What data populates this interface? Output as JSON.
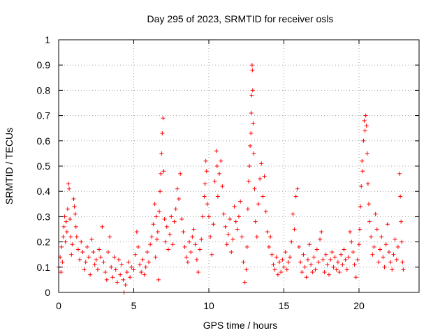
{
  "chart_data": {
    "type": "scatter",
    "title": "Day 295 of 2023, SRMTID for receiver osls",
    "xlabel": "GPS time / hours",
    "ylabel": "SRMTID / TECUs",
    "xlim": [
      0,
      24
    ],
    "ylim": [
      0,
      1
    ],
    "xticks": [
      0,
      5,
      10,
      15,
      20
    ],
    "xtick_labels": [
      "0",
      "5",
      "10",
      "15",
      "20"
    ],
    "yticks": [
      0,
      0.1,
      0.2,
      0.3,
      0.4,
      0.5,
      0.6,
      0.7,
      0.8,
      0.9,
      1
    ],
    "ytick_labels": [
      "0",
      "0.1",
      "0.2",
      "0.3",
      "0.4",
      "0.5",
      "0.6",
      "0.7",
      "0.8",
      "0.9",
      "1"
    ],
    "grid": true,
    "marker": "plus",
    "color": "#ff0000",
    "series": [
      {
        "name": "SRMTID",
        "points": [
          [
            0.0,
            0.1
          ],
          [
            0.1,
            0.14
          ],
          [
            0.15,
            0.08
          ],
          [
            0.2,
            0.18
          ],
          [
            0.25,
            0.12
          ],
          [
            0.3,
            0.22
          ],
          [
            0.35,
            0.26
          ],
          [
            0.4,
            0.3
          ],
          [
            0.45,
            0.2
          ],
          [
            0.5,
            0.28
          ],
          [
            0.55,
            0.24
          ],
          [
            0.6,
            0.33
          ],
          [
            0.65,
            0.43
          ],
          [
            0.7,
            0.41
          ],
          [
            0.75,
            0.29
          ],
          [
            0.8,
            0.22
          ],
          [
            0.85,
            0.15
          ],
          [
            0.9,
            0.19
          ],
          [
            1.0,
            0.37
          ],
          [
            1.05,
            0.34
          ],
          [
            1.1,
            0.31
          ],
          [
            1.15,
            0.26
          ],
          [
            1.2,
            0.22
          ],
          [
            1.3,
            0.17
          ],
          [
            1.4,
            0.13
          ],
          [
            1.5,
            0.2
          ],
          [
            1.6,
            0.16
          ],
          [
            1.7,
            0.09
          ],
          [
            1.8,
            0.12
          ],
          [
            1.9,
            0.18
          ],
          [
            2.0,
            0.14
          ],
          [
            2.1,
            0.07
          ],
          [
            2.2,
            0.21
          ],
          [
            2.3,
            0.16
          ],
          [
            2.4,
            0.11
          ],
          [
            2.5,
            0.13
          ],
          [
            2.6,
            0.09
          ],
          [
            2.7,
            0.17
          ],
          [
            2.8,
            0.14
          ],
          [
            2.9,
            0.26
          ],
          [
            3.0,
            0.12
          ],
          [
            3.1,
            0.08
          ],
          [
            3.2,
            0.05
          ],
          [
            3.3,
            0.16
          ],
          [
            3.4,
            0.22
          ],
          [
            3.5,
            0.1
          ],
          [
            3.6,
            0.06
          ],
          [
            3.7,
            0.14
          ],
          [
            3.8,
            0.09
          ],
          [
            3.9,
            0.04
          ],
          [
            4.0,
            0.13
          ],
          [
            4.1,
            0.07
          ],
          [
            4.2,
            0.11
          ],
          [
            4.3,
            0.05
          ],
          [
            4.35,
            0.0
          ],
          [
            4.45,
            0.03
          ],
          [
            4.55,
            0.08
          ],
          [
            4.65,
            0.12
          ],
          [
            4.75,
            0.06
          ],
          [
            4.85,
            0.1
          ],
          [
            5.0,
            0.09
          ],
          [
            5.1,
            0.15
          ],
          [
            5.2,
            0.24
          ],
          [
            5.3,
            0.18
          ],
          [
            5.4,
            0.11
          ],
          [
            5.5,
            0.08
          ],
          [
            5.6,
            0.13
          ],
          [
            5.7,
            0.07
          ],
          [
            5.8,
            0.1
          ],
          [
            5.9,
            0.16
          ],
          [
            6.0,
            0.12
          ],
          [
            6.1,
            0.19
          ],
          [
            6.2,
            0.22
          ],
          [
            6.3,
            0.27
          ],
          [
            6.4,
            0.35
          ],
          [
            6.45,
            0.14
          ],
          [
            6.5,
            0.3
          ],
          [
            6.55,
            0.21
          ],
          [
            6.6,
            0.24
          ],
          [
            6.65,
            0.05
          ],
          [
            6.7,
            0.32
          ],
          [
            6.75,
            0.4
          ],
          [
            6.8,
            0.47
          ],
          [
            6.85,
            0.55
          ],
          [
            6.9,
            0.63
          ],
          [
            6.95,
            0.69
          ],
          [
            7.0,
            0.48
          ],
          [
            7.05,
            0.29
          ],
          [
            7.1,
            0.2
          ],
          [
            7.2,
            0.26
          ],
          [
            7.3,
            0.17
          ],
          [
            7.4,
            0.23
          ],
          [
            7.5,
            0.3
          ],
          [
            7.6,
            0.19
          ],
          [
            7.7,
            0.28
          ],
          [
            7.8,
            0.33
          ],
          [
            7.9,
            0.41
          ],
          [
            8.0,
            0.37
          ],
          [
            8.1,
            0.47
          ],
          [
            8.2,
            0.29
          ],
          [
            8.3,
            0.24
          ],
          [
            8.4,
            0.18
          ],
          [
            8.5,
            0.14
          ],
          [
            8.6,
            0.12
          ],
          [
            8.7,
            0.2
          ],
          [
            8.8,
            0.16
          ],
          [
            8.9,
            0.22
          ],
          [
            9.0,
            0.25
          ],
          [
            9.1,
            0.19
          ],
          [
            9.2,
            0.13
          ],
          [
            9.3,
            0.08
          ],
          [
            9.4,
            0.17
          ],
          [
            9.5,
            0.21
          ],
          [
            9.6,
            0.3
          ],
          [
            9.7,
            0.38
          ],
          [
            9.75,
            0.43
          ],
          [
            9.8,
            0.52
          ],
          [
            9.85,
            0.48
          ],
          [
            9.9,
            0.35
          ],
          [
            10.0,
            0.3
          ],
          [
            10.1,
            0.22
          ],
          [
            10.2,
            0.15
          ],
          [
            10.3,
            0.27
          ],
          [
            10.4,
            0.44
          ],
          [
            10.5,
            0.56
          ],
          [
            10.55,
            0.5
          ],
          [
            10.6,
            0.38
          ],
          [
            10.7,
            0.47
          ],
          [
            10.8,
            0.52
          ],
          [
            10.9,
            0.42
          ],
          [
            11.0,
            0.31
          ],
          [
            11.1,
            0.26
          ],
          [
            11.2,
            0.19
          ],
          [
            11.3,
            0.23
          ],
          [
            11.4,
            0.29
          ],
          [
            11.5,
            0.16
          ],
          [
            11.6,
            0.21
          ],
          [
            11.7,
            0.34
          ],
          [
            11.8,
            0.28
          ],
          [
            11.9,
            0.25
          ],
          [
            12.0,
            0.3
          ],
          [
            12.1,
            0.36
          ],
          [
            12.2,
            0.22
          ],
          [
            12.3,
            0.12
          ],
          [
            12.4,
            0.04
          ],
          [
            12.5,
            0.09
          ],
          [
            12.55,
            0.18
          ],
          [
            12.6,
            0.33
          ],
          [
            12.65,
            0.44
          ],
          [
            12.7,
            0.5
          ],
          [
            12.75,
            0.58
          ],
          [
            12.8,
            0.63
          ],
          [
            12.82,
            0.71
          ],
          [
            12.85,
            0.78
          ],
          [
            12.88,
            0.9
          ],
          [
            12.9,
            0.88
          ],
          [
            12.92,
            0.8
          ],
          [
            12.95,
            0.67
          ],
          [
            13.0,
            0.55
          ],
          [
            13.05,
            0.41
          ],
          [
            13.1,
            0.28
          ],
          [
            13.2,
            0.22
          ],
          [
            13.3,
            0.35
          ],
          [
            13.4,
            0.45
          ],
          [
            13.5,
            0.51
          ],
          [
            13.6,
            0.38
          ],
          [
            13.7,
            0.46
          ],
          [
            13.8,
            0.32
          ],
          [
            13.9,
            0.24
          ],
          [
            14.0,
            0.18
          ],
          [
            14.1,
            0.22
          ],
          [
            14.2,
            0.15
          ],
          [
            14.3,
            0.11
          ],
          [
            14.4,
            0.09
          ],
          [
            14.5,
            0.14
          ],
          [
            14.6,
            0.07
          ],
          [
            14.7,
            0.12
          ],
          [
            14.8,
            0.08
          ],
          [
            14.9,
            0.13
          ],
          [
            15.0,
            0.1
          ],
          [
            15.1,
            0.16
          ],
          [
            15.2,
            0.09
          ],
          [
            15.3,
            0.12
          ],
          [
            15.4,
            0.14
          ],
          [
            15.5,
            0.2
          ],
          [
            15.6,
            0.31
          ],
          [
            15.7,
            0.25
          ],
          [
            15.8,
            0.38
          ],
          [
            15.9,
            0.41
          ],
          [
            16.0,
            0.18
          ],
          [
            16.1,
            0.12
          ],
          [
            16.2,
            0.08
          ],
          [
            16.3,
            0.15
          ],
          [
            16.4,
            0.1
          ],
          [
            16.5,
            0.06
          ],
          [
            16.6,
            0.13
          ],
          [
            16.7,
            0.19
          ],
          [
            16.8,
            0.11
          ],
          [
            16.9,
            0.08
          ],
          [
            17.0,
            0.14
          ],
          [
            17.1,
            0.09
          ],
          [
            17.2,
            0.17
          ],
          [
            17.3,
            0.12
          ],
          [
            17.4,
            0.21
          ],
          [
            17.5,
            0.24
          ],
          [
            17.6,
            0.13
          ],
          [
            17.7,
            0.08
          ],
          [
            17.8,
            0.15
          ],
          [
            17.9,
            0.11
          ],
          [
            18.0,
            0.07
          ],
          [
            18.1,
            0.13
          ],
          [
            18.2,
            0.16
          ],
          [
            18.3,
            0.1
          ],
          [
            18.4,
            0.14
          ],
          [
            18.5,
            0.09
          ],
          [
            18.6,
            0.12
          ],
          [
            18.7,
            0.08
          ],
          [
            18.8,
            0.15
          ],
          [
            18.9,
            0.11
          ],
          [
            19.0,
            0.17
          ],
          [
            19.1,
            0.13
          ],
          [
            19.2,
            0.09
          ],
          [
            19.3,
            0.14
          ],
          [
            19.4,
            0.24
          ],
          [
            19.5,
            0.2
          ],
          [
            19.6,
            0.16
          ],
          [
            19.7,
            0.11
          ],
          [
            19.8,
            0.06
          ],
          [
            19.9,
            0.13
          ],
          [
            20.0,
            0.19
          ],
          [
            20.05,
            0.25
          ],
          [
            20.1,
            0.34
          ],
          [
            20.15,
            0.42
          ],
          [
            20.2,
            0.52
          ],
          [
            20.25,
            0.48
          ],
          [
            20.3,
            0.6
          ],
          [
            20.35,
            0.68
          ],
          [
            20.4,
            0.64
          ],
          [
            20.45,
            0.7
          ],
          [
            20.5,
            0.66
          ],
          [
            20.55,
            0.55
          ],
          [
            20.6,
            0.43
          ],
          [
            20.65,
            0.35
          ],
          [
            20.7,
            0.28
          ],
          [
            20.8,
            0.22
          ],
          [
            20.9,
            0.15
          ],
          [
            21.0,
            0.18
          ],
          [
            21.1,
            0.31
          ],
          [
            21.2,
            0.25
          ],
          [
            21.3,
            0.12
          ],
          [
            21.4,
            0.17
          ],
          [
            21.5,
            0.22
          ],
          [
            21.6,
            0.14
          ],
          [
            21.7,
            0.1
          ],
          [
            21.8,
            0.19
          ],
          [
            21.9,
            0.27
          ],
          [
            22.0,
            0.16
          ],
          [
            22.1,
            0.12
          ],
          [
            22.2,
            0.09
          ],
          [
            22.3,
            0.15
          ],
          [
            22.4,
            0.21
          ],
          [
            22.5,
            0.13
          ],
          [
            22.6,
            0.18
          ],
          [
            22.7,
            0.47
          ],
          [
            22.75,
            0.38
          ],
          [
            22.8,
            0.28
          ],
          [
            22.85,
            0.2
          ],
          [
            22.9,
            0.12
          ],
          [
            22.95,
            0.09
          ]
        ]
      }
    ]
  }
}
